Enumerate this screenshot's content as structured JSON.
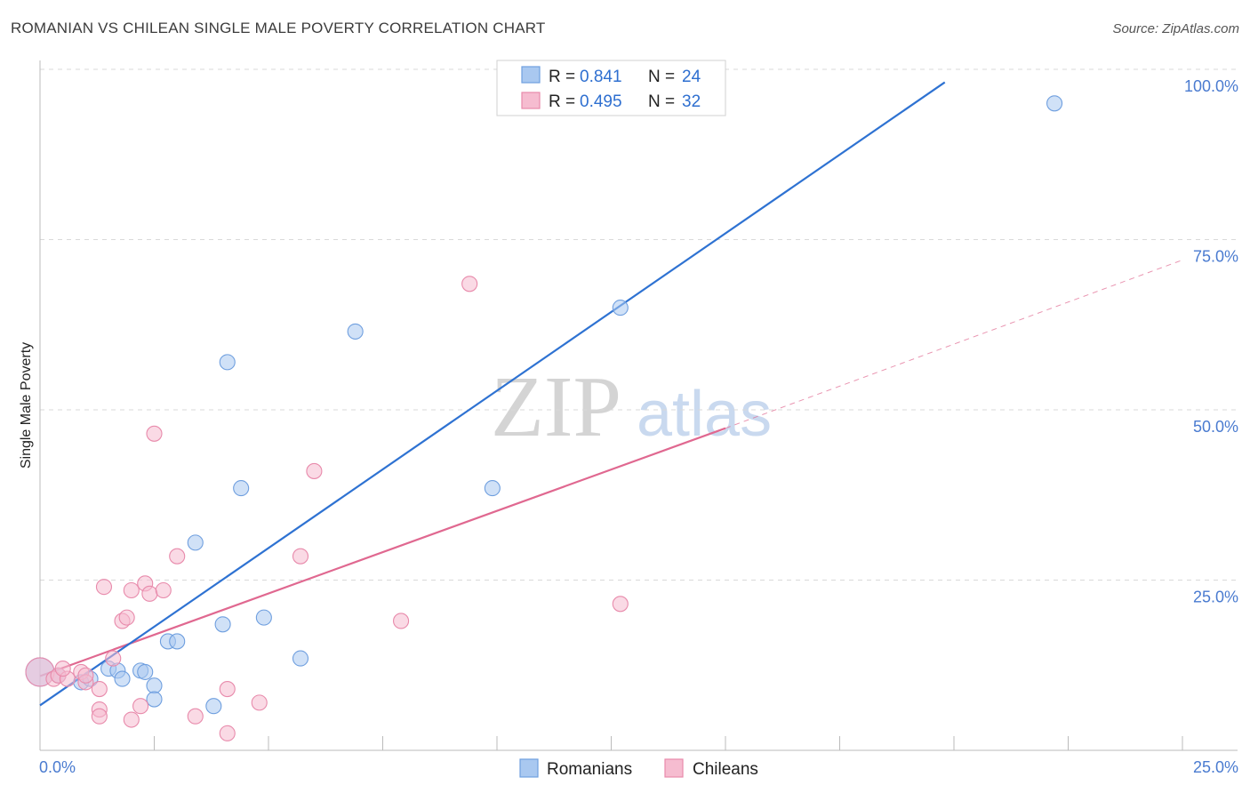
{
  "title": "ROMANIAN VS CHILEAN SINGLE MALE POVERTY CORRELATION CHART",
  "source": "Source: ZipAtlas.com",
  "watermark": {
    "zip": "ZIP",
    "atlas": "atlas"
  },
  "colors": {
    "romanians_fill": "#a9c8f0",
    "romanians_stroke": "#6f9fdf",
    "romanians_line": "#2e72d2",
    "chileans_fill": "#f6bcd0",
    "chileans_stroke": "#e88aab",
    "chileans_line": "#e06890",
    "grid": "#d9d9d9",
    "tick_text": "#4a7bd0"
  },
  "legend": {
    "r_label": "R =",
    "n_label": "N =",
    "rows": [
      {
        "series": "Romanians",
        "r": "0.841",
        "n": "24"
      },
      {
        "series": "Chileans",
        "r": "0.495",
        "n": "32"
      }
    ]
  },
  "chart_data": {
    "type": "scatter",
    "title": "ROMANIAN VS CHILEAN SINGLE MALE POVERTY CORRELATION CHART",
    "xlabel": "",
    "ylabel": "Single Male Poverty",
    "xlim": [
      0,
      25
    ],
    "ylim": [
      0,
      100
    ],
    "x_tick_labels": [
      "0.0%",
      "25.0%"
    ],
    "y_tick_labels": [
      "25.0%",
      "50.0%",
      "75.0%",
      "100.0%"
    ],
    "y_ticks": [
      25,
      50,
      75,
      100
    ],
    "series": [
      {
        "name": "Romanians",
        "points": [
          {
            "x": 0.0,
            "y": 11.5,
            "big": true
          },
          {
            "x": 0.4,
            "y": 11.0
          },
          {
            "x": 0.9,
            "y": 10.0
          },
          {
            "x": 1.1,
            "y": 10.5
          },
          {
            "x": 1.5,
            "y": 12.0
          },
          {
            "x": 1.7,
            "y": 11.7
          },
          {
            "x": 1.8,
            "y": 10.5
          },
          {
            "x": 2.2,
            "y": 11.7
          },
          {
            "x": 2.3,
            "y": 11.5
          },
          {
            "x": 2.5,
            "y": 9.5
          },
          {
            "x": 2.5,
            "y": 7.5
          },
          {
            "x": 2.8,
            "y": 16.0
          },
          {
            "x": 3.0,
            "y": 16.0
          },
          {
            "x": 3.4,
            "y": 30.5
          },
          {
            "x": 3.8,
            "y": 6.5
          },
          {
            "x": 4.0,
            "y": 18.5
          },
          {
            "x": 4.1,
            "y": 57.0
          },
          {
            "x": 4.4,
            "y": 38.5
          },
          {
            "x": 4.9,
            "y": 19.5
          },
          {
            "x": 5.7,
            "y": 13.5
          },
          {
            "x": 6.9,
            "y": 61.5
          },
          {
            "x": 9.9,
            "y": 38.5
          },
          {
            "x": 12.7,
            "y": 65.0
          },
          {
            "x": 22.2,
            "y": 95.0
          }
        ],
        "trend": {
          "x": [
            0.0,
            19.8
          ],
          "y": [
            6.6,
            98.1
          ]
        }
      },
      {
        "name": "Chileans",
        "points": [
          {
            "x": 0.0,
            "y": 11.5,
            "big": true
          },
          {
            "x": 0.3,
            "y": 10.5
          },
          {
            "x": 0.4,
            "y": 11.0
          },
          {
            "x": 0.6,
            "y": 10.5
          },
          {
            "x": 0.9,
            "y": 11.5
          },
          {
            "x": 1.0,
            "y": 10.0
          },
          {
            "x": 1.0,
            "y": 11.0
          },
          {
            "x": 1.3,
            "y": 9.0
          },
          {
            "x": 1.3,
            "y": 6.0
          },
          {
            "x": 1.3,
            "y": 5.0
          },
          {
            "x": 1.4,
            "y": 24.0
          },
          {
            "x": 1.6,
            "y": 13.5
          },
          {
            "x": 1.8,
            "y": 19.0
          },
          {
            "x": 1.9,
            "y": 19.5
          },
          {
            "x": 2.0,
            "y": 4.5
          },
          {
            "x": 2.0,
            "y": 23.5
          },
          {
            "x": 2.2,
            "y": 6.5
          },
          {
            "x": 2.3,
            "y": 24.5
          },
          {
            "x": 2.4,
            "y": 23.0
          },
          {
            "x": 2.5,
            "y": 46.5
          },
          {
            "x": 2.7,
            "y": 23.5
          },
          {
            "x": 3.0,
            "y": 28.5
          },
          {
            "x": 3.4,
            "y": 5.0
          },
          {
            "x": 4.1,
            "y": 2.5
          },
          {
            "x": 4.1,
            "y": 9.0
          },
          {
            "x": 4.8,
            "y": 7.0
          },
          {
            "x": 5.7,
            "y": 28.5
          },
          {
            "x": 6.0,
            "y": 41.0
          },
          {
            "x": 7.9,
            "y": 19.0
          },
          {
            "x": 9.4,
            "y": 68.5
          },
          {
            "x": 12.7,
            "y": 21.5
          },
          {
            "x": 0.5,
            "y": 12.0
          }
        ],
        "trend": {
          "x": [
            0.0,
            15.0
          ],
          "y": [
            10.9,
            47.3
          ]
        },
        "trend_extension": {
          "x": [
            15.0,
            25.0
          ],
          "y": [
            47.3,
            72.0
          ]
        }
      }
    ],
    "legend": [
      "Romanians",
      "Chileans"
    ]
  }
}
